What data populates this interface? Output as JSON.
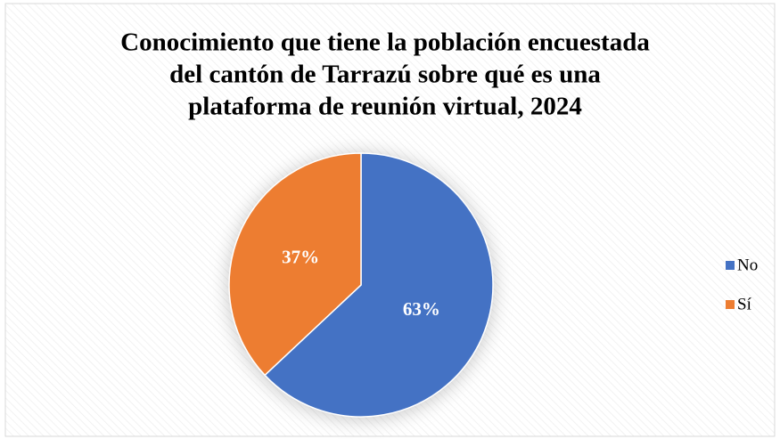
{
  "chart_data": {
    "type": "pie",
    "title": [
      "Conocimiento que tiene la población encuestada",
      "del cantón de Tarrazú sobre qué es una",
      "plataforma de reunión virtual, 2024"
    ],
    "categories": [
      "No",
      "Sí"
    ],
    "values": [
      63,
      37
    ],
    "value_labels": [
      "63%",
      "37%"
    ],
    "colors": [
      "#4472c4",
      "#ed7d31"
    ],
    "legend": "right"
  }
}
